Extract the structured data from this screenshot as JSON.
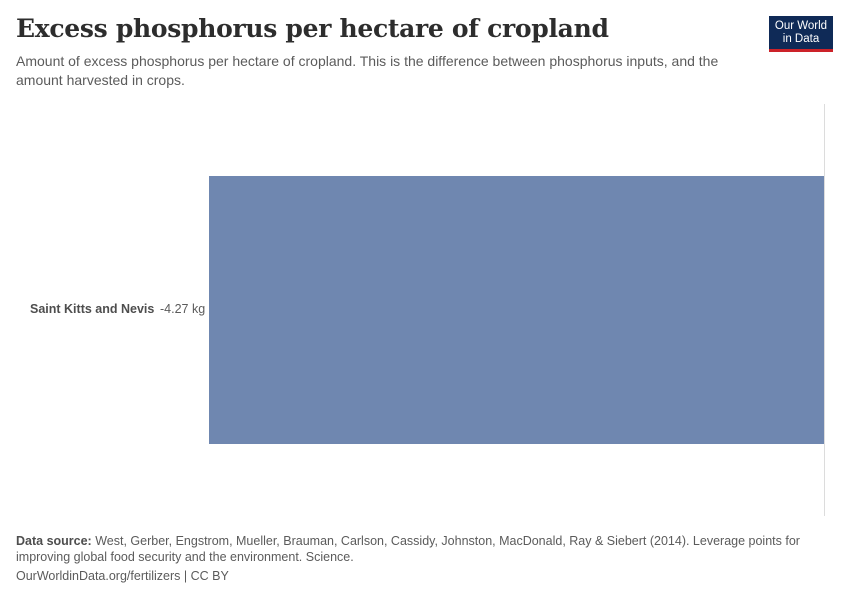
{
  "header": {
    "title": "Excess phosphorus per hectare of cropland",
    "subtitle": "Amount of excess phosphorus per hectare of cropland. This is the difference between phosphorus inputs, and the amount harvested in crops.",
    "logo_line1": "Our World",
    "logo_line2": "in Data"
  },
  "colors": {
    "bar": "#6f87b0",
    "logo_bg": "#0f2a57",
    "logo_accent": "#cc2229",
    "zero_line": "#dcdcdc"
  },
  "chart_data": {
    "type": "bar",
    "orientation": "horizontal",
    "title": "Excess phosphorus per hectare of cropland",
    "subtitle": "Amount of excess phosphorus per hectare of cropland. This is the difference between phosphorus inputs, and the amount harvested in crops.",
    "categories": [
      "Saint Kitts and Nevis"
    ],
    "values": [
      -4.27
    ],
    "value_labels": [
      "-4.27 kg"
    ],
    "unit": "kg",
    "xlabel": "",
    "ylabel": "",
    "xlim": [
      -4.27,
      0
    ],
    "grid": false,
    "legend": null
  },
  "footer": {
    "source_label": "Data source:",
    "source_text": "West, Gerber, Engstrom, Mueller, Brauman, Carlson, Cassidy, Johnston, MacDonald, Ray & Siebert (2014). Leverage points for improving global food security and the environment. Science.",
    "url": "OurWorldinData.org/fertilizers",
    "separator": "|",
    "license": "CC BY"
  }
}
